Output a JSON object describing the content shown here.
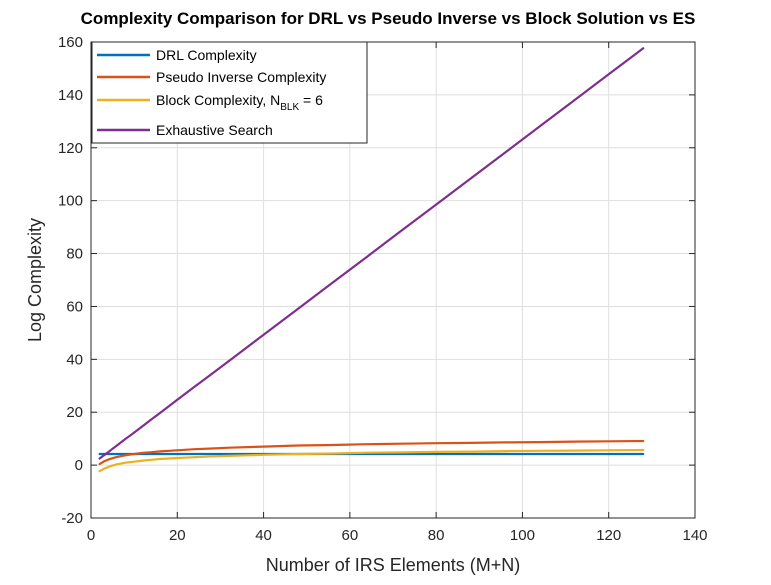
{
  "chart_data": {
    "type": "line",
    "title": "Complexity Comparison for DRL vs Pseudo Inverse vs Block Solution vs ES",
    "xlabel": "Number of IRS Elements (M+N)",
    "ylabel": "Log Complexity",
    "xlim": [
      0,
      140
    ],
    "ylim": [
      -20,
      160
    ],
    "xticks": [
      0,
      20,
      40,
      60,
      80,
      100,
      120,
      140
    ],
    "yticks": [
      -20,
      0,
      20,
      40,
      60,
      80,
      100,
      120,
      140,
      160
    ],
    "grid": true,
    "legend_position": "top-left",
    "x": [
      2,
      3,
      4,
      5,
      6,
      8,
      10,
      12,
      14,
      16,
      20,
      24,
      28,
      32,
      40,
      48,
      56,
      64,
      72,
      80,
      88,
      96,
      104,
      112,
      120,
      128
    ],
    "series": [
      {
        "name": "DRL Complexity",
        "legend_label": "DRL Complexity",
        "color": "#0072BD",
        "values": [
          4.2,
          4.2,
          4.2,
          4.2,
          4.2,
          4.2,
          4.2,
          4.2,
          4.2,
          4.2,
          4.2,
          4.2,
          4.2,
          4.2,
          4.2,
          4.2,
          4.2,
          4.2,
          4.2,
          4.2,
          4.2,
          4.2,
          4.2,
          4.2,
          4.2,
          4.2
        ]
      },
      {
        "name": "Pseudo Inverse Complexity",
        "legend_label": "Pseudo Inverse Complexity",
        "color": "#D95319",
        "values": [
          0.4,
          1.4,
          2.1,
          2.6,
          3.1,
          3.7,
          4.2,
          4.6,
          4.9,
          5.2,
          5.6,
          6.0,
          6.3,
          6.6,
          7.0,
          7.4,
          7.6,
          7.9,
          8.1,
          8.3,
          8.4,
          8.6,
          8.7,
          8.9,
          9.0,
          9.1
        ]
      },
      {
        "name": "Block Complexity, N_BLK = 6",
        "legend_label": "Block Complexity, N",
        "legend_sub": "BLK",
        "legend_suffix": " = 6",
        "color": "#EDB120",
        "values": [
          -2.3,
          -1.4,
          -0.7,
          -0.2,
          0.3,
          0.9,
          1.3,
          1.7,
          2.0,
          2.3,
          2.7,
          3.0,
          3.3,
          3.5,
          3.9,
          4.2,
          4.4,
          4.7,
          4.8,
          5.0,
          5.1,
          5.3,
          5.4,
          5.5,
          5.6,
          5.7
        ]
      },
      {
        "name": "Exhaustive Search",
        "legend_label": "Exhaustive Search",
        "color": "#7E2F8E",
        "values": [
          2.5,
          3.7,
          4.9,
          6.2,
          7.4,
          9.9,
          12.3,
          14.8,
          17.3,
          19.7,
          24.7,
          29.6,
          34.5,
          39.4,
          49.3,
          59.1,
          69.0,
          78.8,
          88.7,
          98.5,
          108.4,
          118.2,
          128.1,
          137.9,
          147.8,
          157.6
        ]
      }
    ]
  }
}
